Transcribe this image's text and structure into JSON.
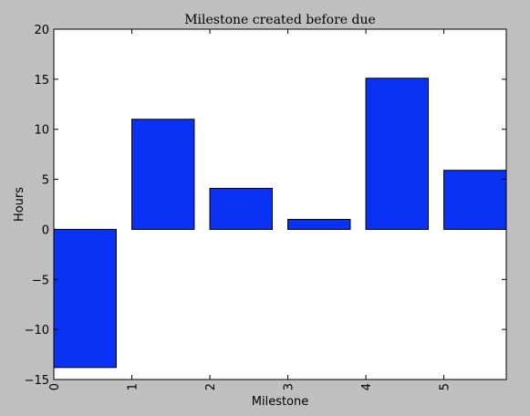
{
  "chart_data": {
    "type": "bar",
    "title": "Milestone created before due",
    "xlabel": "Milestone",
    "ylabel": "Hours",
    "categories": [
      "0",
      "1",
      "2",
      "3",
      "4",
      "5"
    ],
    "values": [
      -13.8,
      11.0,
      4.1,
      1.0,
      15.1,
      5.9
    ],
    "ylim": [
      -15,
      20
    ],
    "xlim": [
      0,
      5.8
    ],
    "yticks": [
      "−15",
      "−10",
      "−5",
      "0",
      "5",
      "10",
      "15",
      "20"
    ],
    "xticks": [
      "0",
      "1",
      "2",
      "3",
      "4",
      "5"
    ],
    "grid": false,
    "bar_color": "#0a32f5",
    "figure_background": "#bfbfbf",
    "axes_background": "#ffffff"
  }
}
